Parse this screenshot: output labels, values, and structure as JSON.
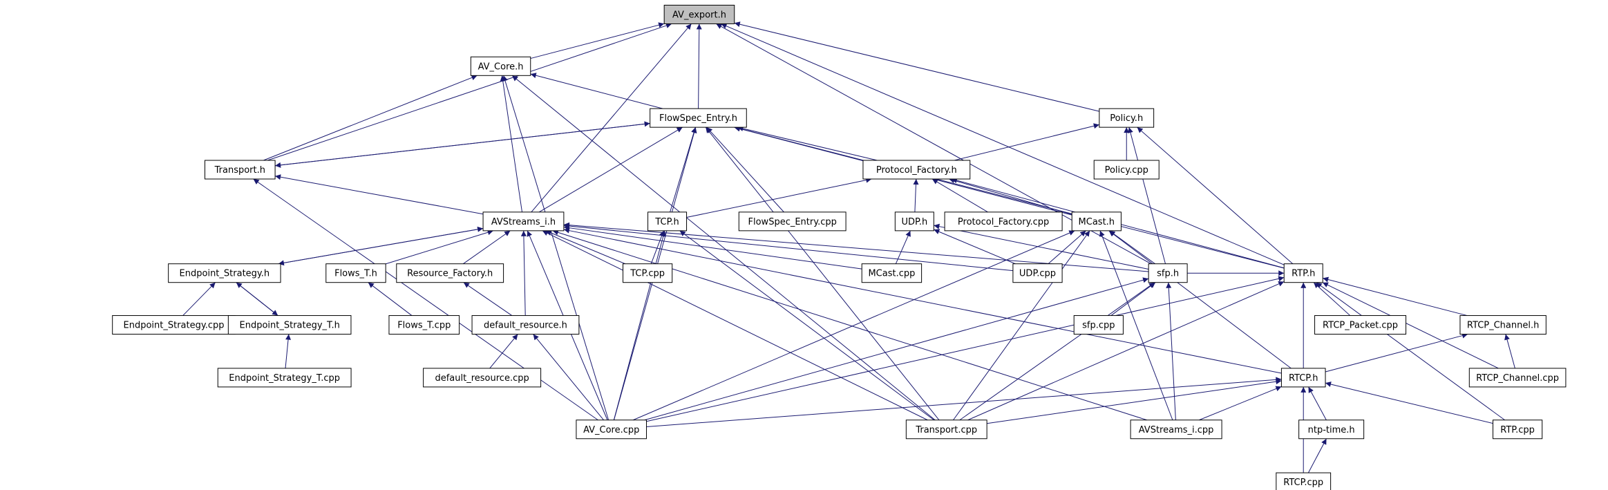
{
  "nodes": [
    {
      "label": "AV_export.h"
    },
    {
      "label": "AV_Core.h"
    },
    {
      "label": "FlowSpec_Entry.h"
    },
    {
      "label": "Policy.h"
    },
    {
      "label": "Transport.h"
    },
    {
      "label": "Protocol_Factory.h"
    },
    {
      "label": "Policy.cpp"
    },
    {
      "label": "AVStreams_i.h"
    },
    {
      "label": "TCP.h"
    },
    {
      "label": "FlowSpec_Entry.cpp"
    },
    {
      "label": "UDP.h"
    },
    {
      "label": "Protocol_Factory.cpp"
    },
    {
      "label": "MCast.h"
    },
    {
      "label": "Endpoint_Strategy.h"
    },
    {
      "label": "Flows_T.h"
    },
    {
      "label": "Resource_Factory.h"
    },
    {
      "label": "TCP.cpp"
    },
    {
      "label": "MCast.cpp"
    },
    {
      "label": "UDP.cpp"
    },
    {
      "label": "sfp.h"
    },
    {
      "label": "RTP.h"
    },
    {
      "label": "Endpoint_Strategy.cpp"
    },
    {
      "label": "Endpoint_Strategy_T.h"
    },
    {
      "label": "Flows_T.cpp"
    },
    {
      "label": "default_resource.h"
    },
    {
      "label": "sfp.cpp"
    },
    {
      "label": "RTCP_Packet.cpp"
    },
    {
      "label": "RTCP_Channel.h"
    },
    {
      "label": "Endpoint_Strategy_T.cpp"
    },
    {
      "label": "default_resource.cpp"
    },
    {
      "label": "RTCP.h"
    },
    {
      "label": "RTCP_Channel.cpp"
    },
    {
      "label": "AV_Core.cpp"
    },
    {
      "label": "Transport.cpp"
    },
    {
      "label": "AVStreams_i.cpp"
    },
    {
      "label": "ntp-time.h"
    },
    {
      "label": "RTP.cpp"
    },
    {
      "label": "RTCP.cpp"
    }
  ]
}
